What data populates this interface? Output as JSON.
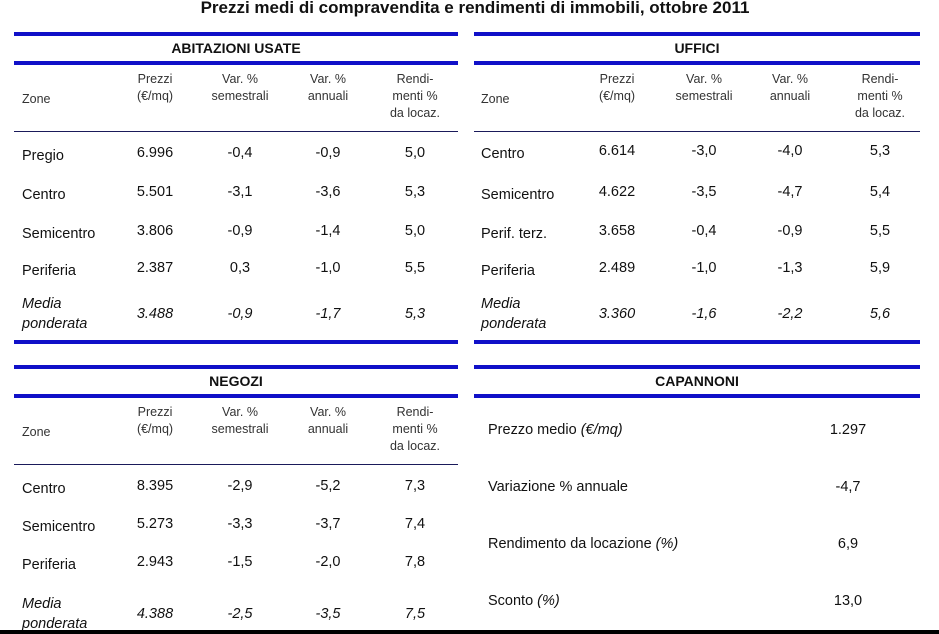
{
  "title": "Prezzi medi di compravendita e rendimenti di immobili, ottobre 2011",
  "columns": [
    "Zone",
    "Prezzi\n(€/mq)",
    "Var. %\nsemestrali",
    "Var. %\nannuali",
    "Rendi-\nmenti %\nda locaz."
  ],
  "tables": [
    {
      "title": "ABITAZIONI USATE",
      "rows": [
        {
          "zone": "Pregio",
          "values": [
            "6.996",
            "-0,4",
            "-0,9",
            "5,0"
          ]
        },
        {
          "zone": "Centro",
          "values": [
            "5.501",
            "-3,1",
            "-3,6",
            "5,3"
          ]
        },
        {
          "zone": "Semicentro",
          "values": [
            "3.806",
            "-0,9",
            "-1,4",
            "5,0"
          ]
        },
        {
          "zone": "Periferia",
          "values": [
            "2.387",
            "0,3",
            "-1,0",
            "5,5"
          ]
        },
        {
          "zone": "Media\nponderata",
          "values": [
            "3.488",
            "-0,9",
            "-1,7",
            "5,3"
          ],
          "italic": true
        }
      ]
    },
    {
      "title": "UFFICI",
      "rows": [
        {
          "zone": "Centro",
          "values": [
            "6.614",
            "-3,0",
            "-4,0",
            "5,3"
          ]
        },
        {
          "zone": "Semicentro",
          "values": [
            "4.622",
            "-3,5",
            "-4,7",
            "5,4"
          ]
        },
        {
          "zone": "Perif. terz.",
          "values": [
            "3.658",
            "-0,4",
            "-0,9",
            "5,5"
          ]
        },
        {
          "zone": "Periferia",
          "values": [
            "2.489",
            "-1,0",
            "-1,3",
            "5,9"
          ]
        },
        {
          "zone": "Media\nponderata",
          "values": [
            "3.360",
            "-1,6",
            "-2,2",
            "5,6"
          ],
          "italic": true
        }
      ]
    },
    {
      "title": "NEGOZI",
      "rows": [
        {
          "zone": "Centro",
          "values": [
            "8.395",
            "-2,9",
            "-5,2",
            "7,3"
          ]
        },
        {
          "zone": "Semicentro",
          "values": [
            "5.273",
            "-3,3",
            "-3,7",
            "7,4"
          ]
        },
        {
          "zone": "Periferia",
          "values": [
            "2.943",
            "-1,5",
            "-2,0",
            "7,8"
          ]
        },
        {
          "zone": "Media\nponderata",
          "values": [
            "4.388",
            "-2,5",
            "-3,5",
            "7,5"
          ],
          "italic": true
        }
      ]
    }
  ],
  "capannoni": {
    "title": "CAPANNONI",
    "rows": [
      {
        "label": "Prezzo medio ",
        "unit": "(€/mq)",
        "value": "1.297"
      },
      {
        "label": "Variazione % annuale",
        "unit": "",
        "value": "-4,7"
      },
      {
        "label": "Rendimento da locazione ",
        "unit": "(%)",
        "value": "6,9"
      },
      {
        "label": "Sconto ",
        "unit": "(%)",
        "value": "13,0"
      }
    ]
  },
  "colors": {
    "rule": "#1010c8",
    "thin_rule": "#1a1a5a"
  }
}
